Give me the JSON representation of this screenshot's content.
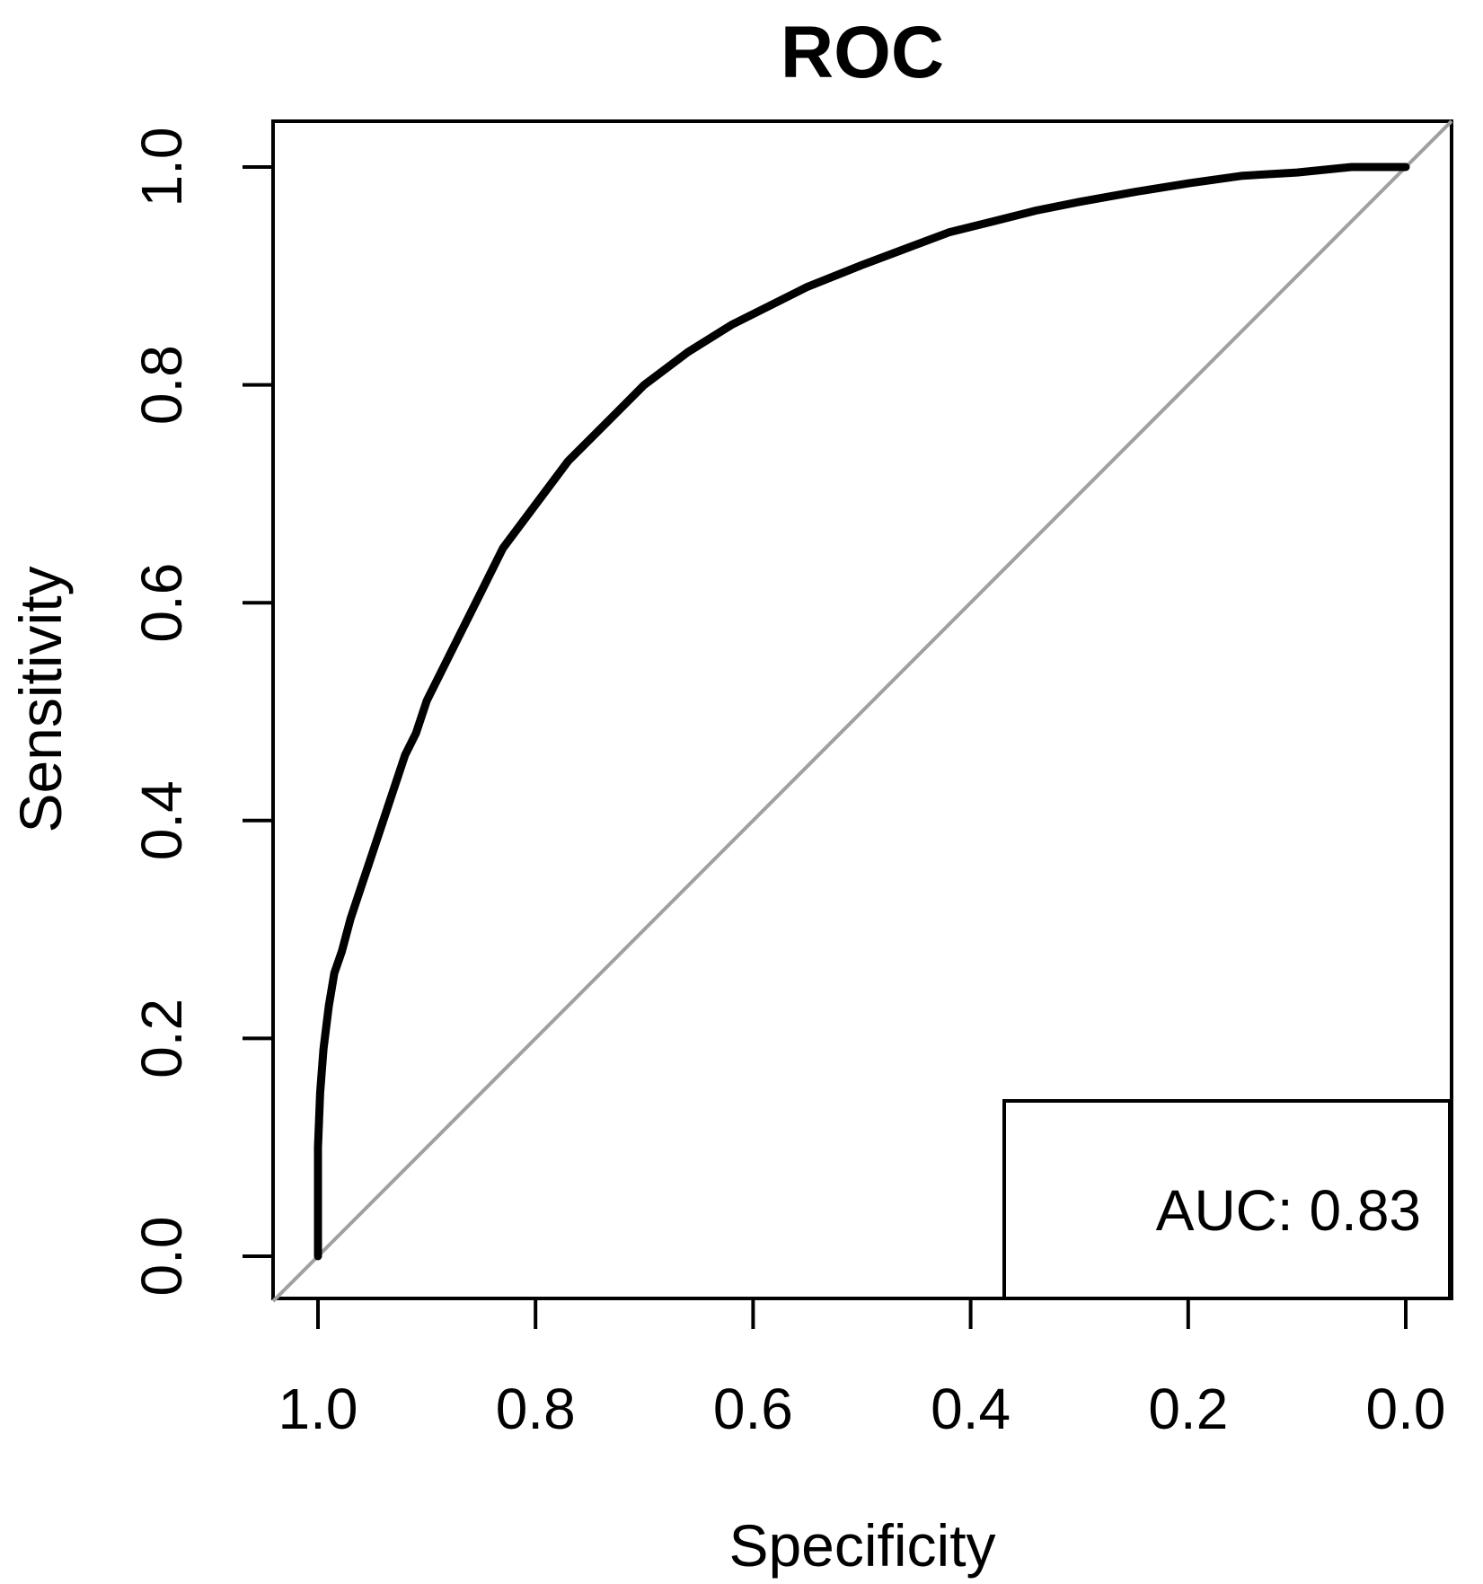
{
  "chart_data": {
    "type": "line",
    "title": "ROC",
    "xlabel": "Specificity",
    "ylabel": "Sensitivity",
    "xlim": [
      1.0,
      0.0
    ],
    "ylim": [
      0.0,
      1.0
    ],
    "x_reversed": true,
    "x_ticks": [
      "1.0",
      "0.8",
      "0.6",
      "0.4",
      "0.2",
      "0.0"
    ],
    "y_ticks": [
      "0.0",
      "0.2",
      "0.4",
      "0.6",
      "0.8",
      "1.0"
    ],
    "grid": false,
    "reference_line": {
      "from": [
        1.0,
        0.0
      ],
      "to": [
        0.0,
        1.0
      ],
      "color": "#a0a0a0"
    },
    "series": [
      {
        "color": "#000000",
        "specificity": [
          1.0,
          1.0,
          0.998,
          0.995,
          0.99,
          0.985,
          0.978,
          0.97,
          0.96,
          0.95,
          0.94,
          0.93,
          0.92,
          0.91,
          0.9,
          0.89,
          0.87,
          0.85,
          0.83,
          0.8,
          0.77,
          0.73,
          0.7,
          0.66,
          0.62,
          0.58,
          0.55,
          0.5,
          0.46,
          0.42,
          0.38,
          0.34,
          0.3,
          0.25,
          0.2,
          0.15,
          0.1,
          0.05,
          0.0
        ],
        "sensitivity": [
          0.0,
          0.1,
          0.15,
          0.19,
          0.23,
          0.26,
          0.28,
          0.31,
          0.34,
          0.37,
          0.4,
          0.43,
          0.46,
          0.48,
          0.51,
          0.53,
          0.57,
          0.61,
          0.65,
          0.69,
          0.73,
          0.77,
          0.8,
          0.83,
          0.855,
          0.875,
          0.89,
          0.91,
          0.925,
          0.94,
          0.95,
          0.96,
          0.968,
          0.977,
          0.985,
          0.992,
          0.995,
          1.0,
          1.0
        ]
      }
    ],
    "legend": {
      "placement": "bottom-right",
      "text": "AUC: 0.83"
    }
  }
}
